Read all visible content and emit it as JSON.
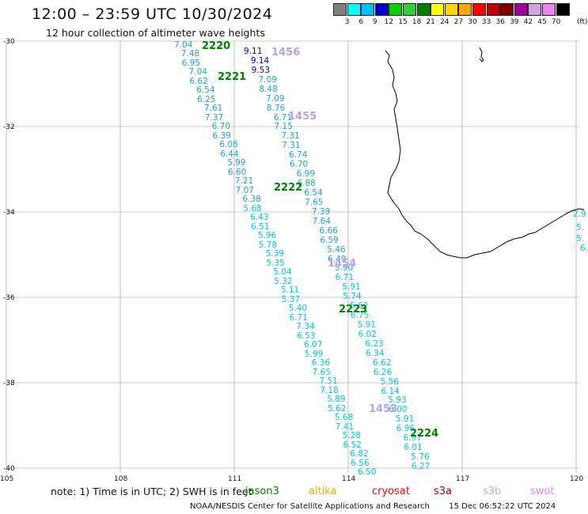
{
  "header": {
    "title": "12:00 – 23:59 UTC 10/30/2024",
    "subtitle": "12 hour collection of altimeter wave heights"
  },
  "legend": {
    "colors": [
      "#808080",
      "#00ffff",
      "#00bfff",
      "#0000cd",
      "#00d200",
      "#32cd32",
      "#008000",
      "#ffff00",
      "#ffd700",
      "#ffa500",
      "#ff0000",
      "#c00000",
      "#800000",
      "#a0009c",
      "#d1a3e0",
      "#ee82ee",
      "#000000"
    ],
    "labels": [
      "3",
      "6",
      "9",
      "12",
      "15",
      "18",
      "21",
      "24",
      "27",
      "30",
      "33",
      "36",
      "39",
      "42",
      "45",
      "70"
    ],
    "unit": "(ft)"
  },
  "axes": {
    "lat_labels": [
      "-30",
      "-32",
      "-34",
      "-36",
      "-38",
      "-40"
    ],
    "lon_labels": [
      "105",
      "108",
      "111",
      "114",
      "117",
      "120"
    ]
  },
  "tracks": {
    "colors": {
      "cyan": "#00c8d8",
      "lightblue": "#1ea0e6",
      "blue": "#0000cc",
      "green": "#008000",
      "lavender": "#b9a0e6"
    },
    "time_stamps": [
      {
        "text": "2220",
        "color": "green"
      },
      {
        "text": "2221",
        "color": "green"
      },
      {
        "text": "2222",
        "color": "green"
      },
      {
        "text": "2223",
        "color": "green"
      },
      {
        "text": "2224",
        "color": "green"
      },
      {
        "text": "1456",
        "color": "lavender"
      },
      {
        "text": "1455",
        "color": "lavender"
      },
      {
        "text": "1454",
        "color": "lavender"
      },
      {
        "text": "1453",
        "color": "lavender"
      }
    ],
    "track_a_values": [
      "7.04",
      "7.48",
      "6.95",
      "7.04",
      "6.62",
      "6.54",
      "6.25",
      "7.61",
      "7.37",
      "6.70",
      "6.39",
      "6.08",
      "6.44",
      "5.99",
      "6.60",
      "7.21",
      "7.07",
      "6.38",
      "5.68",
      "6.43",
      "6.51",
      "5.96",
      "5.78",
      "5.39",
      "5.35",
      "5.04",
      "5.32",
      "5.11",
      "5.37",
      "5.40",
      "6.71",
      "7.34",
      "6.53",
      "6.07",
      "5.99",
      "6.36",
      "7.65",
      "7.51",
      "7.18",
      "5.89",
      "5.62",
      "5.68",
      "7.41",
      "5.28",
      "6.52",
      "6.82",
      "6.56",
      "6.50"
    ],
    "track_b_values": [
      "9.11",
      "9.14",
      "9.53",
      "7.09",
      "8.48",
      "7.09",
      "8.76",
      "6.71",
      "7.15",
      "7.31",
      "7.31",
      "6.74",
      "6.70",
      "6.99",
      "6.88",
      "6.54",
      "7.65",
      "7.39",
      "7.64",
      "6.66",
      "6.59",
      "5.46",
      "6.49",
      "5.90",
      "6.71",
      "5.91",
      "5.74",
      "5.62",
      "6.75",
      "5.91",
      "6.02",
      "6.23",
      "6.34",
      "6.62",
      "6.26",
      "5.56",
      "6.14",
      "5.93",
      "6.00",
      "5.91",
      "6.96",
      "6.97",
      "6.01",
      "5.76",
      "6.27"
    ],
    "edge_values": [
      "2.9",
      "5.",
      "5.",
      "6."
    ]
  },
  "footer": {
    "note": "note:  1) Time is in UTC;  2) SWH is in feet",
    "satellites": [
      {
        "name": "jason3",
        "color": "#008000"
      },
      {
        "name": "altika",
        "color": "#ffa500"
      },
      {
        "name": "cryosat",
        "color": "#ff0000"
      },
      {
        "name": "s3a",
        "color": "#b00000"
      },
      {
        "name": "s3b",
        "color": "#c8a8e8"
      },
      {
        "name": "swot",
        "color": "#ee82ee"
      }
    ],
    "credit": "NOAA/NESDIS Center for Satellite Applications and Research",
    "timestamp": "15 Dec 06:52:22 UTC 2024"
  }
}
